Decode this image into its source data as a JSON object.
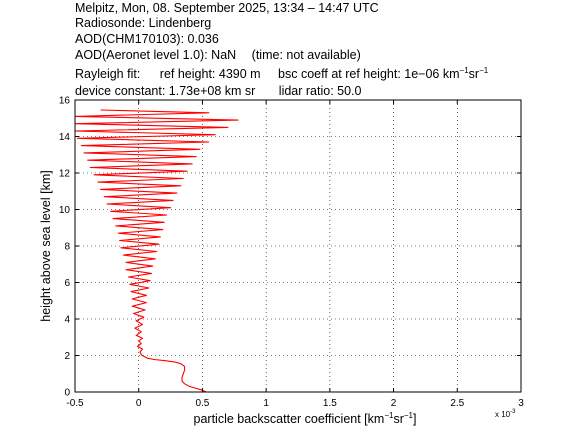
{
  "header": {
    "line1": "Melpitz, Mon, 08. September 2025, 13:34 – 14:47 UTC",
    "line2": "Radiosonde: Lindenberg",
    "line3": "AOD(CHM170103): 0.036",
    "line4_left": "AOD(Aeronet level 1.0): NaN",
    "line4_right": "(time: not available)",
    "rayleigh_label": "Rayleigh fit:",
    "ref_height": "ref height: 4390 m",
    "bsc_coeff_prefix": "bsc coeff at ref height: 1e−06 km",
    "bsc_coeff_unit_mid": "sr",
    "device_constant": "device constant: 1.73e+08 km sr",
    "lidar_ratio": "lidar ratio: 50.0"
  },
  "chart_data": {
    "type": "line",
    "xlabel_prefix": "particle backscatter coefficient [km",
    "xlabel_mid": "sr",
    "xlabel_suffix": "]",
    "ylabel": "height above sea level [km]",
    "x_multiplier_label": "x 10",
    "x_multiplier_exp": "-3",
    "xlim": [
      -0.5,
      3
    ],
    "ylim": [
      0,
      16
    ],
    "xticks": [
      -0.5,
      0,
      0.5,
      1,
      1.5,
      2,
      2.5,
      3
    ],
    "xtick_labels": [
      "-0.5",
      "0",
      "0.5",
      "1",
      "1.5",
      "2",
      "2.5",
      "3"
    ],
    "yticks": [
      0,
      2,
      4,
      6,
      8,
      10,
      12,
      14,
      16
    ],
    "ytick_labels": [
      "0",
      "2",
      "4",
      "6",
      "8",
      "10",
      "12",
      "14",
      "16"
    ],
    "grid": true,
    "line_color": "#ff0000",
    "series": [
      {
        "values": [
          [
            0.53,
            0.0
          ],
          [
            0.5,
            0.1
          ],
          [
            0.45,
            0.2
          ],
          [
            0.4,
            0.3
          ],
          [
            0.36,
            0.45
          ],
          [
            0.34,
            0.6
          ],
          [
            0.34,
            0.8
          ],
          [
            0.35,
            1.0
          ],
          [
            0.36,
            1.2
          ],
          [
            0.36,
            1.4
          ],
          [
            0.33,
            1.55
          ],
          [
            0.28,
            1.65
          ],
          [
            0.2,
            1.72
          ],
          [
            0.12,
            1.78
          ],
          [
            0.07,
            1.85
          ],
          [
            0.04,
            1.95
          ],
          [
            0.02,
            2.05
          ],
          [
            0.01,
            2.2
          ],
          [
            0.03,
            2.35
          ],
          [
            -0.01,
            2.5
          ],
          [
            0.02,
            2.65
          ],
          [
            0.0,
            2.8
          ],
          [
            0.03,
            2.95
          ],
          [
            -0.02,
            3.1
          ],
          [
            0.02,
            3.3
          ],
          [
            -0.03,
            3.5
          ],
          [
            0.03,
            3.7
          ],
          [
            -0.02,
            3.9
          ],
          [
            0.04,
            4.1
          ],
          [
            -0.04,
            4.3
          ],
          [
            0.05,
            4.5
          ],
          [
            -0.05,
            4.7
          ],
          [
            0.06,
            4.9
          ],
          [
            -0.05,
            5.1
          ],
          [
            0.06,
            5.3
          ],
          [
            -0.06,
            5.5
          ],
          [
            0.08,
            5.7
          ],
          [
            -0.07,
            5.9
          ],
          [
            0.09,
            6.1
          ],
          [
            -0.08,
            6.3
          ],
          [
            0.1,
            6.5
          ],
          [
            -0.1,
            6.7
          ],
          [
            0.11,
            6.9
          ],
          [
            -0.1,
            7.1
          ],
          [
            0.13,
            7.3
          ],
          [
            -0.12,
            7.5
          ],
          [
            0.14,
            7.7
          ],
          [
            -0.14,
            7.9
          ],
          [
            0.16,
            8.1
          ],
          [
            -0.15,
            8.3
          ],
          [
            0.17,
            8.5
          ],
          [
            -0.16,
            8.7
          ],
          [
            0.19,
            8.9
          ],
          [
            -0.18,
            9.1
          ],
          [
            0.2,
            9.3
          ],
          [
            -0.2,
            9.5
          ],
          [
            0.22,
            9.7
          ],
          [
            -0.22,
            9.9
          ],
          [
            0.25,
            10.1
          ],
          [
            -0.25,
            10.3
          ],
          [
            0.27,
            10.5
          ],
          [
            -0.27,
            10.7
          ],
          [
            0.3,
            10.9
          ],
          [
            -0.3,
            11.1
          ],
          [
            0.33,
            11.3
          ],
          [
            -0.32,
            11.5
          ],
          [
            0.35,
            11.7
          ],
          [
            -0.35,
            11.9
          ],
          [
            0.38,
            12.1
          ],
          [
            -0.38,
            12.3
          ],
          [
            0.42,
            12.5
          ],
          [
            -0.4,
            12.7
          ],
          [
            0.45,
            12.9
          ],
          [
            -0.43,
            13.1
          ],
          [
            0.48,
            13.3
          ],
          [
            -0.45,
            13.5
          ],
          [
            0.55,
            13.7
          ],
          [
            -0.48,
            13.9
          ],
          [
            0.6,
            14.1
          ],
          [
            -0.5,
            14.3
          ],
          [
            0.7,
            14.5
          ],
          [
            -0.5,
            14.7
          ],
          [
            0.78,
            14.9
          ],
          [
            -0.5,
            15.1
          ],
          [
            0.55,
            15.3
          ],
          [
            -0.3,
            15.45
          ]
        ]
      }
    ]
  }
}
